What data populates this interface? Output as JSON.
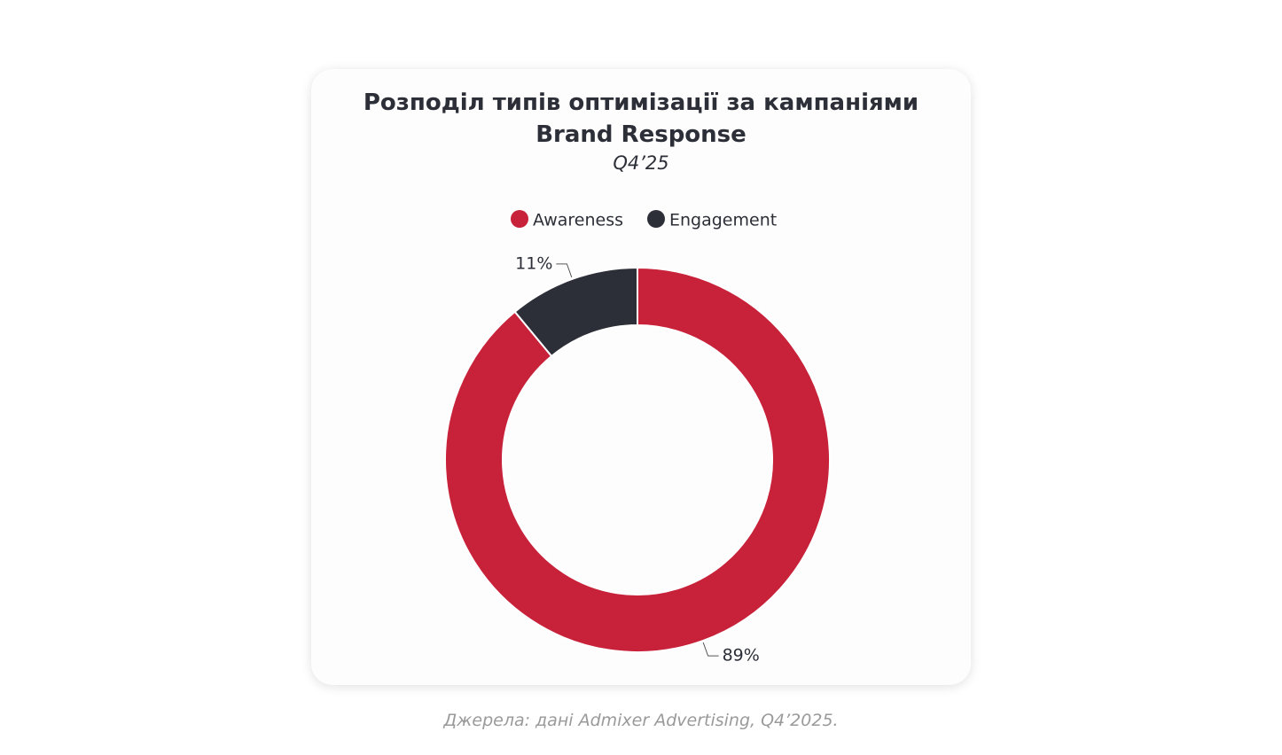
{
  "chart_data": {
    "type": "pie",
    "donut": true,
    "title": "Розподіл типів оптимізації за кампаніями Brand Response",
    "subtitle": "Q4’25",
    "categories": [
      "Awareness",
      "Engagement"
    ],
    "values": [
      89,
      11
    ],
    "value_labels": [
      "89%",
      "11%"
    ],
    "colors": [
      "#c8223a",
      "#2d2f38"
    ],
    "legend": "top"
  },
  "source": "Джерела: дані Admixer Advertising, Q4’2025."
}
